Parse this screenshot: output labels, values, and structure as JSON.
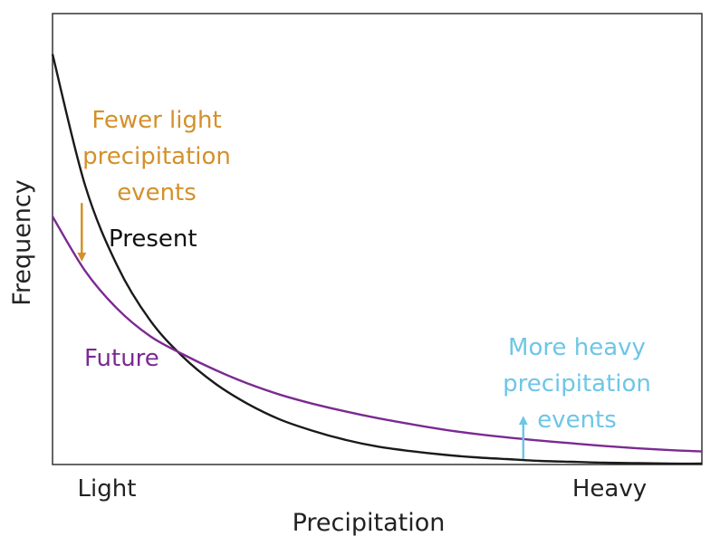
{
  "chart_data": {
    "type": "line",
    "title": "",
    "xlabel": "Precipitation",
    "ylabel": "Frequency",
    "x_tick_labels": [
      "Light",
      "Heavy"
    ],
    "xlim": [
      0,
      1
    ],
    "ylim": [
      0,
      1
    ],
    "grid": false,
    "series": [
      {
        "name": "Present",
        "color": "#1a1a1a",
        "x": [
          0.0,
          0.05,
          0.1,
          0.15,
          0.2,
          0.25,
          0.3,
          0.35,
          0.4,
          0.45,
          0.5,
          0.55,
          0.6,
          0.65,
          0.7,
          0.75,
          0.8,
          0.85,
          0.9,
          0.95,
          1.0
        ],
        "y": [
          0.91,
          0.62,
          0.44,
          0.32,
          0.24,
          0.18,
          0.135,
          0.1,
          0.075,
          0.055,
          0.04,
          0.03,
          0.022,
          0.016,
          0.012,
          0.008,
          0.006,
          0.004,
          0.003,
          0.002,
          0.002
        ]
      },
      {
        "name": "Future",
        "color": "#7b2a92",
        "x": [
          0.0,
          0.05,
          0.1,
          0.15,
          0.2,
          0.25,
          0.3,
          0.35,
          0.4,
          0.45,
          0.5,
          0.55,
          0.6,
          0.65,
          0.7,
          0.75,
          0.8,
          0.85,
          0.9,
          0.95,
          1.0
        ],
        "y": [
          0.55,
          0.43,
          0.345,
          0.285,
          0.245,
          0.21,
          0.18,
          0.155,
          0.135,
          0.118,
          0.103,
          0.09,
          0.078,
          0.068,
          0.06,
          0.053,
          0.047,
          0.041,
          0.036,
          0.032,
          0.029
        ]
      }
    ],
    "annotations": [
      {
        "lines": [
          "Fewer light",
          "precipitation",
          "events"
        ],
        "color": "#d4902a",
        "arrow": {
          "x": 0.045,
          "y_from": 0.58,
          "y_to": 0.46,
          "direction": "down"
        }
      },
      {
        "lines": [
          "More heavy",
          "precipitation",
          "events"
        ],
        "color": "#6ec6e6",
        "arrow": {
          "x": 0.725,
          "y_from": 0.012,
          "y_to": 0.098,
          "direction": "up"
        }
      }
    ]
  }
}
